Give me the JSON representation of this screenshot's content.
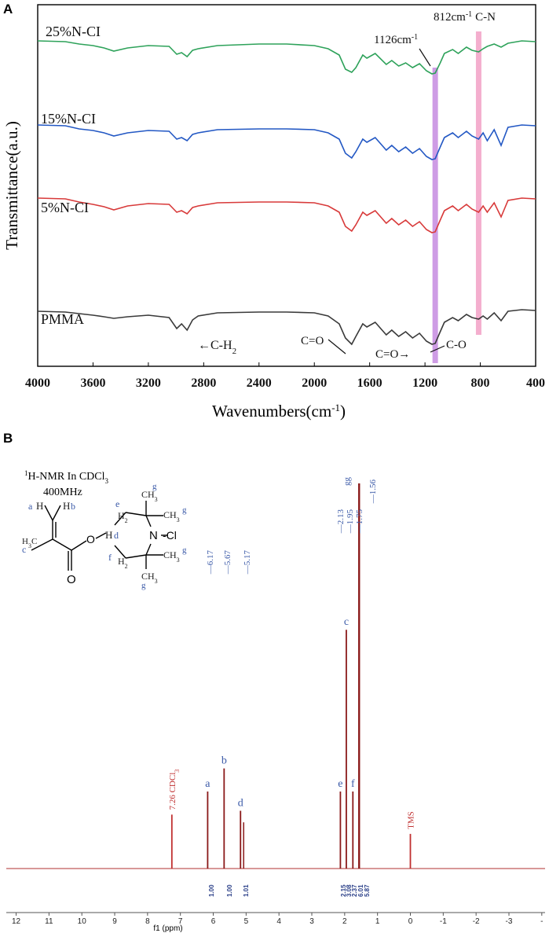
{
  "chart_data": [
    {
      "panel": "A",
      "type": "line",
      "xlabel": "Wavenumbers(cm",
      "xlabel_sup": "-1",
      "xlabel_end": ")",
      "ylabel": "Transmittance(a.u.)",
      "xlim": [
        4000,
        400
      ],
      "x_ticks": [
        "4000",
        "3600",
        "3200",
        "2800",
        "2400",
        "2000",
        "1600",
        "1200",
        "800",
        "400"
      ],
      "series": [
        {
          "name": "25%N-CI",
          "color": "#2ea25a",
          "offset": 0,
          "points": [
            [
              4000,
              0.02
            ],
            [
              3800,
              0.03
            ],
            [
              3700,
              0.06
            ],
            [
              3600,
              0.08
            ],
            [
              3520,
              0.11
            ],
            [
              3450,
              0.15
            ],
            [
              3350,
              0.11
            ],
            [
              3200,
              0.08
            ],
            [
              3050,
              0.09
            ],
            [
              2995,
              0.19
            ],
            [
              2960,
              0.17
            ],
            [
              2920,
              0.22
            ],
            [
              2880,
              0.14
            ],
            [
              2840,
              0.12
            ],
            [
              2700,
              0.08
            ],
            [
              2400,
              0.06
            ],
            [
              2200,
              0.06
            ],
            [
              2000,
              0.08
            ],
            [
              1900,
              0.12
            ],
            [
              1820,
              0.2
            ],
            [
              1775,
              0.38
            ],
            [
              1730,
              0.42
            ],
            [
              1700,
              0.36
            ],
            [
              1650,
              0.2
            ],
            [
              1620,
              0.24
            ],
            [
              1560,
              0.18
            ],
            [
              1480,
              0.32
            ],
            [
              1440,
              0.27
            ],
            [
              1390,
              0.34
            ],
            [
              1340,
              0.3
            ],
            [
              1290,
              0.36
            ],
            [
              1240,
              0.31
            ],
            [
              1190,
              0.4
            ],
            [
              1150,
              0.44
            ],
            [
              1126,
              0.43
            ],
            [
              1090,
              0.3
            ],
            [
              1060,
              0.18
            ],
            [
              1000,
              0.13
            ],
            [
              960,
              0.18
            ],
            [
              900,
              0.1
            ],
            [
              860,
              0.14
            ],
            [
              812,
              0.16
            ],
            [
              780,
              0.12
            ],
            [
              750,
              0.09
            ],
            [
              700,
              0.06
            ],
            [
              650,
              0.1
            ],
            [
              600,
              0.05
            ],
            [
              500,
              0.02
            ],
            [
              400,
              0.03
            ]
          ]
        },
        {
          "name": "15%N-CI",
          "color": "#2358c4",
          "offset": 1,
          "points": [
            [
              4000,
              0.02
            ],
            [
              3800,
              0.03
            ],
            [
              3700,
              0.07
            ],
            [
              3600,
              0.09
            ],
            [
              3520,
              0.12
            ],
            [
              3450,
              0.16
            ],
            [
              3350,
              0.12
            ],
            [
              3200,
              0.09
            ],
            [
              3050,
              0.1
            ],
            [
              2995,
              0.2
            ],
            [
              2960,
              0.18
            ],
            [
              2920,
              0.22
            ],
            [
              2880,
              0.14
            ],
            [
              2840,
              0.12
            ],
            [
              2700,
              0.08
            ],
            [
              2400,
              0.07
            ],
            [
              2200,
              0.07
            ],
            [
              2000,
              0.08
            ],
            [
              1900,
              0.12
            ],
            [
              1820,
              0.2
            ],
            [
              1775,
              0.38
            ],
            [
              1730,
              0.44
            ],
            [
              1700,
              0.36
            ],
            [
              1650,
              0.2
            ],
            [
              1620,
              0.24
            ],
            [
              1560,
              0.18
            ],
            [
              1480,
              0.34
            ],
            [
              1440,
              0.28
            ],
            [
              1390,
              0.36
            ],
            [
              1340,
              0.3
            ],
            [
              1290,
              0.38
            ],
            [
              1240,
              0.32
            ],
            [
              1190,
              0.42
            ],
            [
              1150,
              0.46
            ],
            [
              1126,
              0.45
            ],
            [
              1090,
              0.3
            ],
            [
              1060,
              0.18
            ],
            [
              1000,
              0.12
            ],
            [
              960,
              0.18
            ],
            [
              900,
              0.1
            ],
            [
              860,
              0.16
            ],
            [
              812,
              0.2
            ],
            [
              780,
              0.12
            ],
            [
              750,
              0.22
            ],
            [
              700,
              0.08
            ],
            [
              650,
              0.28
            ],
            [
              600,
              0.05
            ],
            [
              500,
              0.02
            ],
            [
              400,
              0.03
            ]
          ]
        },
        {
          "name": "5%N-CI",
          "color": "#d83a3a",
          "offset": 2,
          "points": [
            [
              4000,
              0.02
            ],
            [
              3800,
              0.03
            ],
            [
              3700,
              0.07
            ],
            [
              3600,
              0.1
            ],
            [
              3520,
              0.13
            ],
            [
              3450,
              0.17
            ],
            [
              3350,
              0.12
            ],
            [
              3200,
              0.09
            ],
            [
              3050,
              0.1
            ],
            [
              2995,
              0.2
            ],
            [
              2960,
              0.18
            ],
            [
              2920,
              0.22
            ],
            [
              2880,
              0.14
            ],
            [
              2840,
              0.12
            ],
            [
              2700,
              0.08
            ],
            [
              2400,
              0.07
            ],
            [
              2200,
              0.07
            ],
            [
              2000,
              0.08
            ],
            [
              1900,
              0.12
            ],
            [
              1820,
              0.2
            ],
            [
              1775,
              0.38
            ],
            [
              1730,
              0.44
            ],
            [
              1700,
              0.36
            ],
            [
              1650,
              0.2
            ],
            [
              1620,
              0.24
            ],
            [
              1560,
              0.18
            ],
            [
              1480,
              0.34
            ],
            [
              1440,
              0.28
            ],
            [
              1390,
              0.36
            ],
            [
              1340,
              0.3
            ],
            [
              1290,
              0.38
            ],
            [
              1240,
              0.32
            ],
            [
              1190,
              0.42
            ],
            [
              1150,
              0.46
            ],
            [
              1126,
              0.45
            ],
            [
              1090,
              0.3
            ],
            [
              1060,
              0.18
            ],
            [
              1000,
              0.12
            ],
            [
              960,
              0.18
            ],
            [
              900,
              0.1
            ],
            [
              860,
              0.16
            ],
            [
              812,
              0.2
            ],
            [
              780,
              0.12
            ],
            [
              750,
              0.2
            ],
            [
              700,
              0.08
            ],
            [
              650,
              0.26
            ],
            [
              600,
              0.05
            ],
            [
              500,
              0.02
            ],
            [
              400,
              0.03
            ]
          ]
        },
        {
          "name": "PMMA",
          "color": "#3a3a3a",
          "offset": 3,
          "points": [
            [
              4000,
              0.04
            ],
            [
              3800,
              0.05
            ],
            [
              3700,
              0.07
            ],
            [
              3600,
              0.09
            ],
            [
              3520,
              0.11
            ],
            [
              3450,
              0.13
            ],
            [
              3350,
              0.11
            ],
            [
              3200,
              0.09
            ],
            [
              3050,
              0.12
            ],
            [
              2995,
              0.26
            ],
            [
              2960,
              0.2
            ],
            [
              2920,
              0.28
            ],
            [
              2880,
              0.15
            ],
            [
              2840,
              0.1
            ],
            [
              2700,
              0.06
            ],
            [
              2400,
              0.05
            ],
            [
              2200,
              0.05
            ],
            [
              2000,
              0.06
            ],
            [
              1900,
              0.1
            ],
            [
              1820,
              0.2
            ],
            [
              1775,
              0.38
            ],
            [
              1730,
              0.46
            ],
            [
              1700,
              0.36
            ],
            [
              1650,
              0.2
            ],
            [
              1620,
              0.24
            ],
            [
              1560,
              0.18
            ],
            [
              1480,
              0.34
            ],
            [
              1440,
              0.28
            ],
            [
              1390,
              0.36
            ],
            [
              1340,
              0.3
            ],
            [
              1290,
              0.38
            ],
            [
              1240,
              0.32
            ],
            [
              1190,
              0.42
            ],
            [
              1150,
              0.46
            ],
            [
              1126,
              0.45
            ],
            [
              1090,
              0.3
            ],
            [
              1060,
              0.18
            ],
            [
              1000,
              0.12
            ],
            [
              960,
              0.16
            ],
            [
              900,
              0.08
            ],
            [
              860,
              0.12
            ],
            [
              812,
              0.14
            ],
            [
              780,
              0.1
            ],
            [
              750,
              0.14
            ],
            [
              700,
              0.06
            ],
            [
              650,
              0.16
            ],
            [
              600,
              0.04
            ],
            [
              500,
              0.02
            ],
            [
              400,
              0.03
            ]
          ]
        }
      ],
      "highlights": [
        {
          "x": 1126,
          "color": "#c58be0",
          "label": "1126cm",
          "label_sup": "-1"
        },
        {
          "x": 812,
          "color": "#f2a0c6",
          "label": "812cm",
          "label_sup": "-1",
          "label2": "C-N"
        }
      ],
      "annotations": [
        {
          "text": "C-H",
          "sub": "2"
        },
        {
          "text": "C=O"
        },
        {
          "text": "C=O"
        },
        {
          "text": "C-O"
        }
      ]
    },
    {
      "panel": "B",
      "type": "line",
      "xlabel": "f1 (ppm)",
      "xlim": [
        12.3,
        -4.1
      ],
      "x_ticks": [
        "12",
        "11",
        "10",
        "9",
        "8",
        "7",
        "6",
        "5",
        "4",
        "3",
        "2",
        "1",
        "0",
        "-1",
        "-2",
        "-3",
        "-"
      ],
      "title_lines": [
        {
          "prefix_sup": "1",
          "text": "H-NMR In CDCl",
          "sub": "3"
        },
        {
          "text": "400MHz"
        }
      ],
      "peaks": [
        {
          "ppm": 7.26,
          "height": 0.14,
          "label": "7.26 CDCl",
          "label_sub": "3",
          "color": "#c03030"
        },
        {
          "ppm": 6.17,
          "height": 0.2,
          "label": "a"
        },
        {
          "ppm": 5.67,
          "height": 0.26,
          "label": "b"
        },
        {
          "ppm": 5.17,
          "height": 0.15,
          "label": "d"
        },
        {
          "ppm": 2.13,
          "height": 0.2,
          "label": "e"
        },
        {
          "ppm": 1.95,
          "height": 0.62,
          "label": "c"
        },
        {
          "ppm": 1.75,
          "height": 0.2,
          "label": "f"
        },
        {
          "ppm": 1.56,
          "height": 1.0,
          "label": "g"
        },
        {
          "ppm": 0.0,
          "height": 0.09,
          "label": "TMS",
          "color": "#c03030"
        }
      ],
      "shift_labels": [
        "6.17",
        "5.67",
        "5.17",
        "2.13",
        "1.95",
        "1.75",
        "1.56"
      ],
      "integrals": [
        {
          "ppm": 6.17,
          "value": "1.00"
        },
        {
          "ppm": 5.67,
          "value": "1.00"
        },
        {
          "ppm": 5.17,
          "value": "1.01"
        },
        {
          "ppm": 2.13,
          "value": "2.15"
        },
        {
          "ppm": 1.95,
          "value": "3.08"
        },
        {
          "ppm": 1.75,
          "value": "2.37"
        },
        {
          "ppm": 1.56,
          "value": "6.01"
        },
        {
          "ppm": 1.4,
          "value": "5.87"
        }
      ],
      "structure_labels": {
        "a": "a",
        "b": "b",
        "c": "c",
        "d": "d",
        "e": "e",
        "f": "f",
        "g": "g",
        "H_left": "H",
        "H_right": "H",
        "H_d": "H",
        "N": "N",
        "Cl": "-Cl",
        "O": "O",
        "O_carbonyl": "O",
        "CH3": "CH",
        "CH3_sub": "3",
        "H2": "H",
        "H2_sub": "2",
        "H3C_c": "H",
        "H3C_sub": "3",
        "H3C_C": "C"
      }
    }
  ],
  "labels": {
    "panel_a": "A",
    "panel_b": "B"
  }
}
